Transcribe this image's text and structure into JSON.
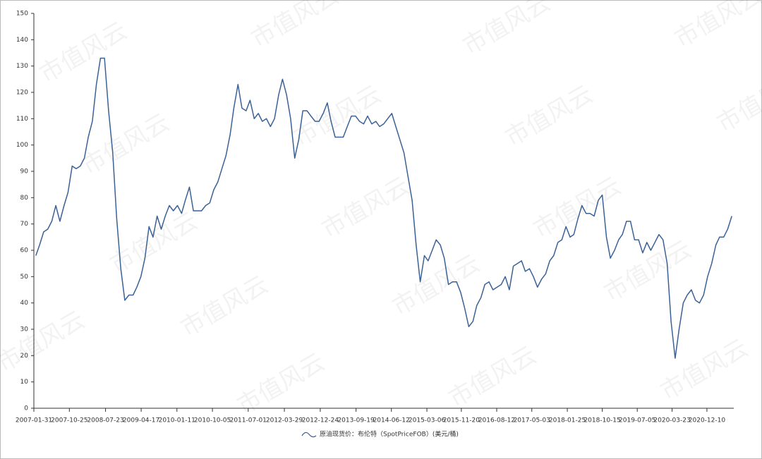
{
  "chart_data": {
    "type": "line",
    "watermark": "市值风云",
    "x": [
      "2007-02-15",
      "2007-03-15",
      "2007-04-15",
      "2007-05-15",
      "2007-06-15",
      "2007-07-15",
      "2007-08-15",
      "2007-09-15",
      "2007-10-15",
      "2007-11-15",
      "2007-12-15",
      "2008-01-15",
      "2008-02-15",
      "2008-03-15",
      "2008-04-15",
      "2008-05-15",
      "2008-06-15",
      "2008-07-15",
      "2008-08-15",
      "2008-09-15",
      "2008-10-15",
      "2008-11-15",
      "2008-12-15",
      "2009-01-15",
      "2009-02-15",
      "2009-03-15",
      "2009-04-15",
      "2009-05-15",
      "2009-06-15",
      "2009-07-15",
      "2009-08-15",
      "2009-09-15",
      "2009-10-15",
      "2009-11-15",
      "2009-12-15",
      "2010-01-15",
      "2010-02-15",
      "2010-03-15",
      "2010-04-15",
      "2010-05-15",
      "2010-06-15",
      "2010-07-15",
      "2010-08-15",
      "2010-09-15",
      "2010-10-15",
      "2010-11-15",
      "2010-12-15",
      "2011-01-15",
      "2011-02-15",
      "2011-03-15",
      "2011-04-15",
      "2011-05-15",
      "2011-06-15",
      "2011-07-15",
      "2011-08-15",
      "2011-09-15",
      "2011-10-15",
      "2011-11-15",
      "2011-12-15",
      "2012-01-15",
      "2012-02-15",
      "2012-03-15",
      "2012-04-15",
      "2012-05-15",
      "2012-06-15",
      "2012-07-15",
      "2012-08-15",
      "2012-09-15",
      "2012-10-15",
      "2012-11-15",
      "2012-12-15",
      "2013-01-15",
      "2013-02-15",
      "2013-03-15",
      "2013-04-15",
      "2013-05-15",
      "2013-06-15",
      "2013-07-15",
      "2013-08-15",
      "2013-09-15",
      "2013-10-15",
      "2013-11-15",
      "2013-12-15",
      "2014-01-15",
      "2014-02-15",
      "2014-03-15",
      "2014-04-15",
      "2014-05-15",
      "2014-06-15",
      "2014-07-15",
      "2014-08-15",
      "2014-09-15",
      "2014-10-15",
      "2014-11-15",
      "2014-12-15",
      "2015-01-15",
      "2015-02-15",
      "2015-03-15",
      "2015-04-15",
      "2015-05-15",
      "2015-06-15",
      "2015-07-15",
      "2015-08-15",
      "2015-09-15",
      "2015-10-15",
      "2015-11-15",
      "2015-12-15",
      "2016-01-15",
      "2016-02-15",
      "2016-03-15",
      "2016-04-15",
      "2016-05-15",
      "2016-06-15",
      "2016-07-15",
      "2016-08-15",
      "2016-09-15",
      "2016-10-15",
      "2016-11-15",
      "2016-12-15",
      "2017-01-15",
      "2017-02-15",
      "2017-03-15",
      "2017-04-15",
      "2017-05-15",
      "2017-06-15",
      "2017-07-15",
      "2017-08-15",
      "2017-09-15",
      "2017-10-15",
      "2017-11-15",
      "2017-12-15",
      "2018-01-15",
      "2018-02-15",
      "2018-03-15",
      "2018-04-15",
      "2018-05-15",
      "2018-06-15",
      "2018-07-15",
      "2018-08-15",
      "2018-09-15",
      "2018-10-15",
      "2018-11-15",
      "2018-12-15",
      "2019-01-15",
      "2019-02-15",
      "2019-03-15",
      "2019-04-15",
      "2019-05-15",
      "2019-06-15",
      "2019-07-15",
      "2019-08-15",
      "2019-09-15",
      "2019-10-15",
      "2019-11-15",
      "2019-12-15",
      "2020-01-15",
      "2020-02-15",
      "2020-03-15",
      "2020-04-15",
      "2020-05-15",
      "2020-06-15",
      "2020-07-15",
      "2020-08-15",
      "2020-09-15",
      "2020-10-15",
      "2020-11-15",
      "2020-12-15",
      "2021-01-15",
      "2021-02-15",
      "2021-03-15",
      "2021-04-15",
      "2021-05-15",
      "2021-06-15"
    ],
    "series": [
      {
        "name": "原油现货价：布伦特（SpotPriceFOB）(美元/桶)",
        "color": "#3a6296",
        "values": [
          58,
          62,
          67,
          68,
          71,
          77,
          71,
          77,
          82,
          92,
          91,
          92,
          95,
          103,
          109,
          123,
          133,
          133,
          113,
          97,
          72,
          53,
          41,
          43,
          43,
          46,
          50,
          57,
          69,
          65,
          73,
          68,
          73,
          77,
          75,
          77,
          74,
          79,
          84,
          75,
          75,
          75,
          77,
          78,
          83,
          86,
          91,
          96,
          104,
          114,
          123,
          114,
          113,
          117,
          110,
          112,
          109,
          110,
          107,
          110,
          119,
          125,
          119,
          110,
          95,
          102,
          113,
          113,
          111,
          109,
          109,
          112,
          116,
          109,
          103,
          103,
          103,
          107,
          111,
          111,
          109,
          108,
          111,
          108,
          109,
          107,
          108,
          110,
          112,
          107,
          102,
          97,
          88,
          79,
          62,
          48,
          58,
          56,
          60,
          64,
          62,
          57,
          47,
          48,
          48,
          44,
          38,
          31,
          33,
          39,
          42,
          47,
          48,
          45,
          46,
          47,
          50,
          45,
          54,
          55,
          56,
          52,
          53,
          50,
          46,
          49,
          51,
          56,
          58,
          63,
          64,
          69,
          65,
          66,
          72,
          77,
          74,
          74,
          73,
          79,
          81,
          65,
          57,
          60,
          64,
          66,
          71,
          71,
          64,
          64,
          59,
          63,
          60,
          63,
          66,
          64,
          55,
          33,
          19,
          30,
          40,
          43,
          45,
          41,
          40,
          43,
          50,
          55,
          62,
          65,
          65,
          68,
          73
        ]
      }
    ],
    "xlim": [
      "2007-01-31",
      "2021-06-30"
    ],
    "xticks": [
      "2007-01-31",
      "2007-10-25",
      "2008-07-23",
      "2009-04-17",
      "2010-01-11",
      "2010-10-05",
      "2011-07-01",
      "2012-03-29",
      "2012-12-24",
      "2013-09-19",
      "2014-06-12",
      "2015-03-06",
      "2015-11-20",
      "2016-08-12",
      "2017-05-03",
      "2018-01-25",
      "2018-10-15",
      "2019-07-05",
      "2020-03-23",
      "2020-12-10"
    ],
    "ylim": [
      0,
      150
    ],
    "yticks": [
      0,
      10,
      20,
      30,
      40,
      50,
      60,
      70,
      80,
      90,
      100,
      110,
      120,
      130,
      140,
      150
    ],
    "grid": false
  }
}
